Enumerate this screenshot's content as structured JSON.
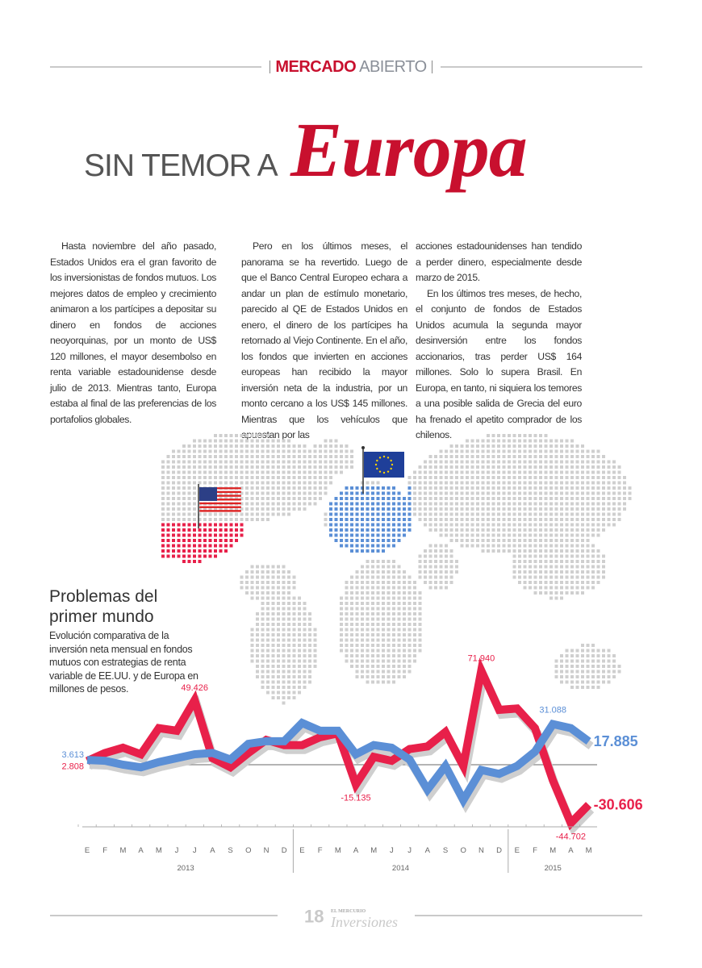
{
  "header": {
    "section_bold": "MERCADO",
    "section_light": "ABIERTO"
  },
  "title": {
    "part1": "SIN TEMOR A",
    "part2": "Europa"
  },
  "article": {
    "col1": [
      "Hasta noviembre del año pasado, Estados Unidos era el gran favorito de los inversionistas de fondos mutuos. Los mejores datos de empleo y crecimiento animaron a los partícipes a depositar su dinero en fondos de acciones neoyorquinas, por un monto de US$ 120 millones, el mayor desembolso en renta variable estadounidense desde julio de 2013. Mientras tanto, Europa estaba al final de las preferencias de los portafolios globales."
    ],
    "col2": [
      "Pero en los últimos meses, el panorama se ha revertido. Luego de que el Banco Central Europeo echara a andar un plan de estímulo monetario, parecido al QE de Estados Unidos en enero, el dinero de los partícipes ha retornado al Viejo Continente. En el año, los fondos que invierten en acciones europeas han recibido la mayor inversión neta de la industria, por un monto cercano a los US$ 145 millones. Mientras que los vehículos que apuestan por las"
    ],
    "col3_cont": "acciones estadounidenses han tendido a perder dinero, especialmente desde marzo de 2015.",
    "col3": "En los últimos tres meses, de hecho, el conjunto de fondos de Estados Unidos acumula la segunda mayor desinversión entre los fondos accionarios, tras perder US$ 164 millones. Solo lo supera Brasil. En Europa, en tanto, ni siquiera los temores a una posible salida de Grecia del euro ha frenado el apetito comprador de los chilenos."
  },
  "map": {
    "icons": [
      "us-flag-icon",
      "eu-flag-icon"
    ],
    "us_color": "#e8204a",
    "eu_color": "#5b8fd6",
    "dot_color": "#cfcfcf"
  },
  "chart_data": {
    "type": "line",
    "title": "Problemas del primer mundo",
    "subtitle": "Evolución comparativa de la inversión neta mensual en fondos mutuos con estrategias de renta variable de EE.UU. y de Europa en millones de pesos.",
    "categories": [
      "E",
      "F",
      "M",
      "A",
      "M",
      "J",
      "J",
      "A",
      "S",
      "O",
      "N",
      "D",
      "E",
      "F",
      "M",
      "A",
      "M",
      "J",
      "J",
      "A",
      "S",
      "O",
      "N",
      "D",
      "E",
      "F",
      "M",
      "A",
      "M"
    ],
    "years": [
      {
        "label": "2013",
        "months": 12
      },
      {
        "label": "2014",
        "months": 12
      },
      {
        "label": "2015",
        "months": 5
      }
    ],
    "ylim": [
      -50000,
      80000
    ],
    "zero_line": true,
    "series": [
      {
        "color": "#e8204a",
        "values": [
          2808,
          9000,
          13000,
          8000,
          28000,
          26000,
          49426,
          5000,
          -2000,
          9000,
          19000,
          15000,
          15000,
          21000,
          24000,
          -15135,
          6000,
          3000,
          12000,
          14000,
          25000,
          -1000,
          71940,
          42000,
          43000,
          28000,
          -12000,
          -44702,
          -30606
        ]
      },
      {
        "color": "#5b8fd6",
        "values": [
          3613,
          3000,
          0,
          -2000,
          2000,
          5000,
          8000,
          9000,
          4000,
          16000,
          18000,
          18000,
          32000,
          26000,
          26000,
          8000,
          15000,
          13000,
          4000,
          -19000,
          -1000,
          -27000,
          -4000,
          -7000,
          -1000,
          10000,
          31088,
          28000,
          17885
        ]
      }
    ],
    "labels": [
      {
        "series": 1,
        "index": 0,
        "text": "3.613"
      },
      {
        "series": 0,
        "index": 0,
        "text": "2.808"
      },
      {
        "series": 0,
        "index": 6,
        "text": "49.426"
      },
      {
        "series": 0,
        "index": 15,
        "text": "-15.135"
      },
      {
        "series": 0,
        "index": 22,
        "text": "71.940"
      },
      {
        "series": 1,
        "index": 26,
        "text": "31.088"
      },
      {
        "series": 0,
        "index": 27,
        "text": "-44.702"
      },
      {
        "series": 1,
        "index": 28,
        "text": "17.885"
      },
      {
        "series": 0,
        "index": 28,
        "text": "-30.606"
      }
    ]
  },
  "footer": {
    "page": "18",
    "publisher": "EL MERCURIO",
    "magazine": "Inversiones"
  }
}
